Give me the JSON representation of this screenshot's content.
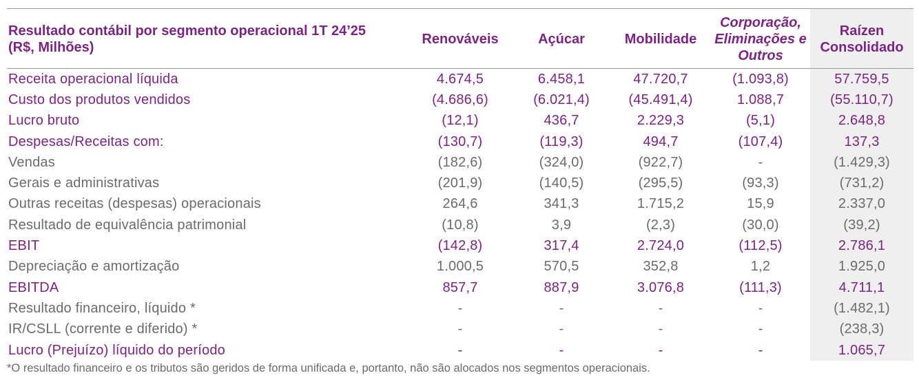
{
  "header": {
    "title_lines": [
      "Resultado contábil por segmento operacional 1T 24’25",
      "(R$, Milhões)"
    ],
    "columns": [
      "Renováveis",
      "Açúcar",
      "Mobilidade",
      "Corporação, Eliminações e Outros",
      "Raízen Consolidado"
    ]
  },
  "table": {
    "rows": [
      {
        "label": "Receita operacional líquida",
        "emphasis": true,
        "cells": [
          "4.674,5",
          "6.458,1",
          "47.720,7",
          "(1.093,8)",
          "57.759,5"
        ]
      },
      {
        "label": "Custo dos produtos vendidos",
        "emphasis": true,
        "cells": [
          "(4.686,6)",
          "(6.021,4)",
          "(45.491,4)",
          "1.088,7",
          "(55.110,7)"
        ]
      },
      {
        "label": "Lucro bruto",
        "emphasis": true,
        "cells": [
          "(12,1)",
          "436,7",
          "2.229,3",
          "(5,1)",
          "2.648,8"
        ]
      },
      {
        "label": "Despesas/Receitas com:",
        "emphasis": true,
        "cells": [
          "(130,7)",
          "(119,3)",
          "494,7",
          "(107,4)",
          "137,3"
        ]
      },
      {
        "label": "Vendas",
        "emphasis": false,
        "cells": [
          "(182,6)",
          "(324,0)",
          "(922,7)",
          "-",
          "(1.429,3)"
        ]
      },
      {
        "label": "Gerais e administrativas",
        "emphasis": false,
        "cells": [
          "(201,9)",
          "(140,5)",
          "(295,5)",
          "(93,3)",
          "(731,2)"
        ]
      },
      {
        "label": "Outras receitas (despesas) operacionais",
        "emphasis": false,
        "cells": [
          "264,6",
          "341,3",
          "1.715,2",
          "15,9",
          "2.337,0"
        ]
      },
      {
        "label": "Resultado de equivalência patrimonial",
        "emphasis": false,
        "cells": [
          "(10,8)",
          "3,9",
          "(2,3)",
          "(30,0)",
          "(39,2)"
        ]
      },
      {
        "label": "EBIT",
        "emphasis": true,
        "cells": [
          "(142,8)",
          "317,4",
          "2.724,0",
          "(112,5)",
          "2.786,1"
        ]
      },
      {
        "label": "Depreciação e amortização",
        "emphasis": false,
        "cells": [
          "1.000,5",
          "570,5",
          "352,8",
          "1,2",
          "1.925,0"
        ]
      },
      {
        "label": "EBITDA",
        "emphasis": true,
        "cells": [
          "857,7",
          "887,9",
          "3.076,8",
          "(111,3)",
          "4.711,1"
        ]
      },
      {
        "label": "Resultado financeiro, líquido *",
        "emphasis": false,
        "cells": [
          "-",
          "-",
          "-",
          "-",
          "(1.482,1)"
        ]
      },
      {
        "label": "IR/CSLL (corrente e diferido) *",
        "emphasis": false,
        "cells": [
          "-",
          "-",
          "-",
          "-",
          "(238,3)"
        ]
      },
      {
        "label": "Lucro (Prejuízo) líquido do período",
        "emphasis": true,
        "cells": [
          "-",
          "-",
          "-",
          "-",
          "1.065,7"
        ]
      }
    ]
  },
  "footnote": "*O resultado financeiro e os tributos são geridos de forma unificada e, portanto, não são alocados nos segmentos operacionais."
}
